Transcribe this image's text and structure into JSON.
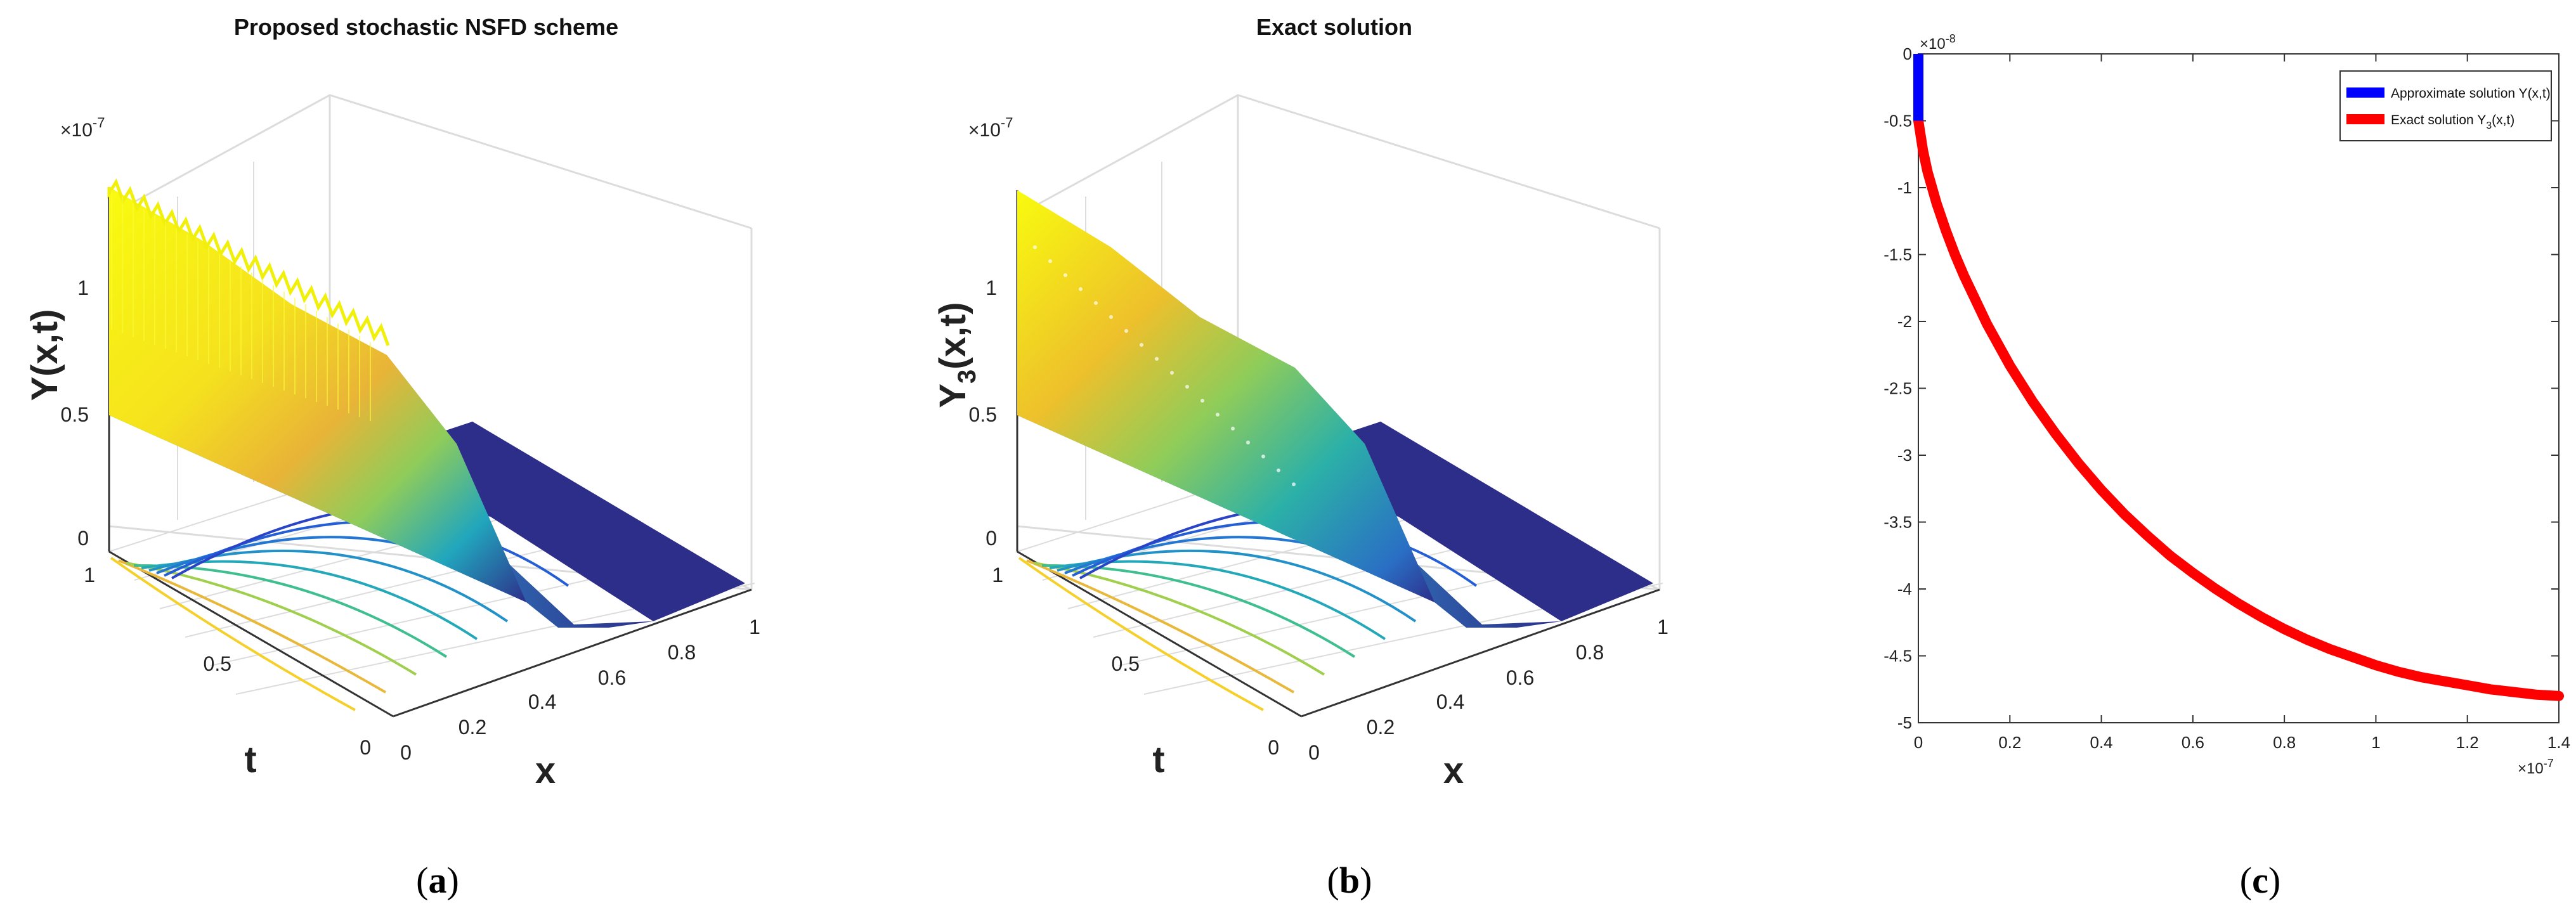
{
  "panel_labels": {
    "a_open": "(",
    "a_letter": "a",
    "a_close": ")",
    "b_open": "(",
    "b_letter": "b",
    "b_close": ")",
    "c_open": "(",
    "c_letter": "c",
    "c_close": ")"
  },
  "chart_data": [
    {
      "id": "a",
      "type": "surface3d",
      "title": "Proposed stochastic NSFD scheme",
      "zlabel": "Y(x,t)",
      "xlabel": "x",
      "ylabel": "t",
      "z_exponent": "×10",
      "z_exponent_power": "-7",
      "z_ticks": [
        "0",
        "0.5",
        "1"
      ],
      "x_ticks": [
        "0",
        "0.2",
        "0.4",
        "0.6",
        "0.8",
        "1"
      ],
      "t_ticks": [
        "0",
        "0.5",
        "1"
      ],
      "noisy": true,
      "colors": {
        "high": "#f9fb0e",
        "mid": "#21a6bd",
        "low": "#2d2e8a",
        "edge": "#3c3d9a"
      }
    },
    {
      "id": "b",
      "type": "surface3d",
      "title": "Exact solution",
      "zlabel_main": "Y",
      "zlabel_sub": "3",
      "zlabel_rest": "(x,t)",
      "xlabel": "x",
      "ylabel": "t",
      "z_exponent": "×10",
      "z_exponent_power": "-7",
      "z_ticks": [
        "0",
        "0.5",
        "1"
      ],
      "x_ticks": [
        "0",
        "0.2",
        "0.4",
        "0.6",
        "0.8",
        "1"
      ],
      "t_ticks": [
        "0",
        "0.5",
        "1"
      ],
      "noisy": false,
      "colors": {
        "high": "#f9fb0e",
        "mid": "#21a6bd",
        "low": "#2d2e8a",
        "edge": "#3c3d9a"
      }
    },
    {
      "id": "c",
      "type": "line",
      "x_exponent": "×10",
      "x_exponent_power": "-7",
      "y_exponent": "×10",
      "y_exponent_power": "-8",
      "xlim": [
        0,
        1.4
      ],
      "ylim": [
        -5,
        0
      ],
      "x_ticks": [
        0,
        0.2,
        0.4,
        0.6,
        0.8,
        1,
        1.2,
        1.4
      ],
      "x_tick_labels": [
        "0",
        "0.2",
        "0.4",
        "0.6",
        "0.8",
        "1",
        "1.2",
        "1.4"
      ],
      "y_ticks": [
        0,
        -0.5,
        -1,
        -1.5,
        -2,
        -2.5,
        -3,
        -3.5,
        -4,
        -4.5,
        -5
      ],
      "y_tick_labels": [
        "0",
        "-0.5",
        "-1",
        "-1.5",
        "-2",
        "-2.5",
        "-3",
        "-3.5",
        "-4",
        "-4.5",
        "-5"
      ],
      "legend_position": "top-right",
      "series": [
        {
          "name": "Approximate solution Y(x,t)",
          "color": "#0000ff",
          "x": [
            0,
            0.0,
            0.0
          ],
          "y": [
            0,
            -0.3,
            -0.5
          ]
        },
        {
          "name_main": "Exact solution Y",
          "name_sub": "3",
          "name_rest": "(x,t)",
          "color": "#ff0000",
          "x": [
            0,
            0.01,
            0.02,
            0.04,
            0.06,
            0.08,
            0.1,
            0.15,
            0.2,
            0.25,
            0.3,
            0.35,
            0.4,
            0.45,
            0.5,
            0.55,
            0.6,
            0.65,
            0.7,
            0.75,
            0.8,
            0.85,
            0.9,
            0.95,
            1.0,
            1.05,
            1.1,
            1.15,
            1.2,
            1.25,
            1.3,
            1.35,
            1.4
          ],
          "y": [
            -0.5,
            -0.72,
            -0.88,
            -1.12,
            -1.32,
            -1.5,
            -1.66,
            -2.02,
            -2.33,
            -2.6,
            -2.84,
            -3.06,
            -3.26,
            -3.44,
            -3.6,
            -3.75,
            -3.88,
            -4.0,
            -4.11,
            -4.21,
            -4.3,
            -4.38,
            -4.45,
            -4.51,
            -4.57,
            -4.62,
            -4.66,
            -4.69,
            -4.72,
            -4.75,
            -4.77,
            -4.79,
            -4.8
          ]
        }
      ]
    }
  ]
}
